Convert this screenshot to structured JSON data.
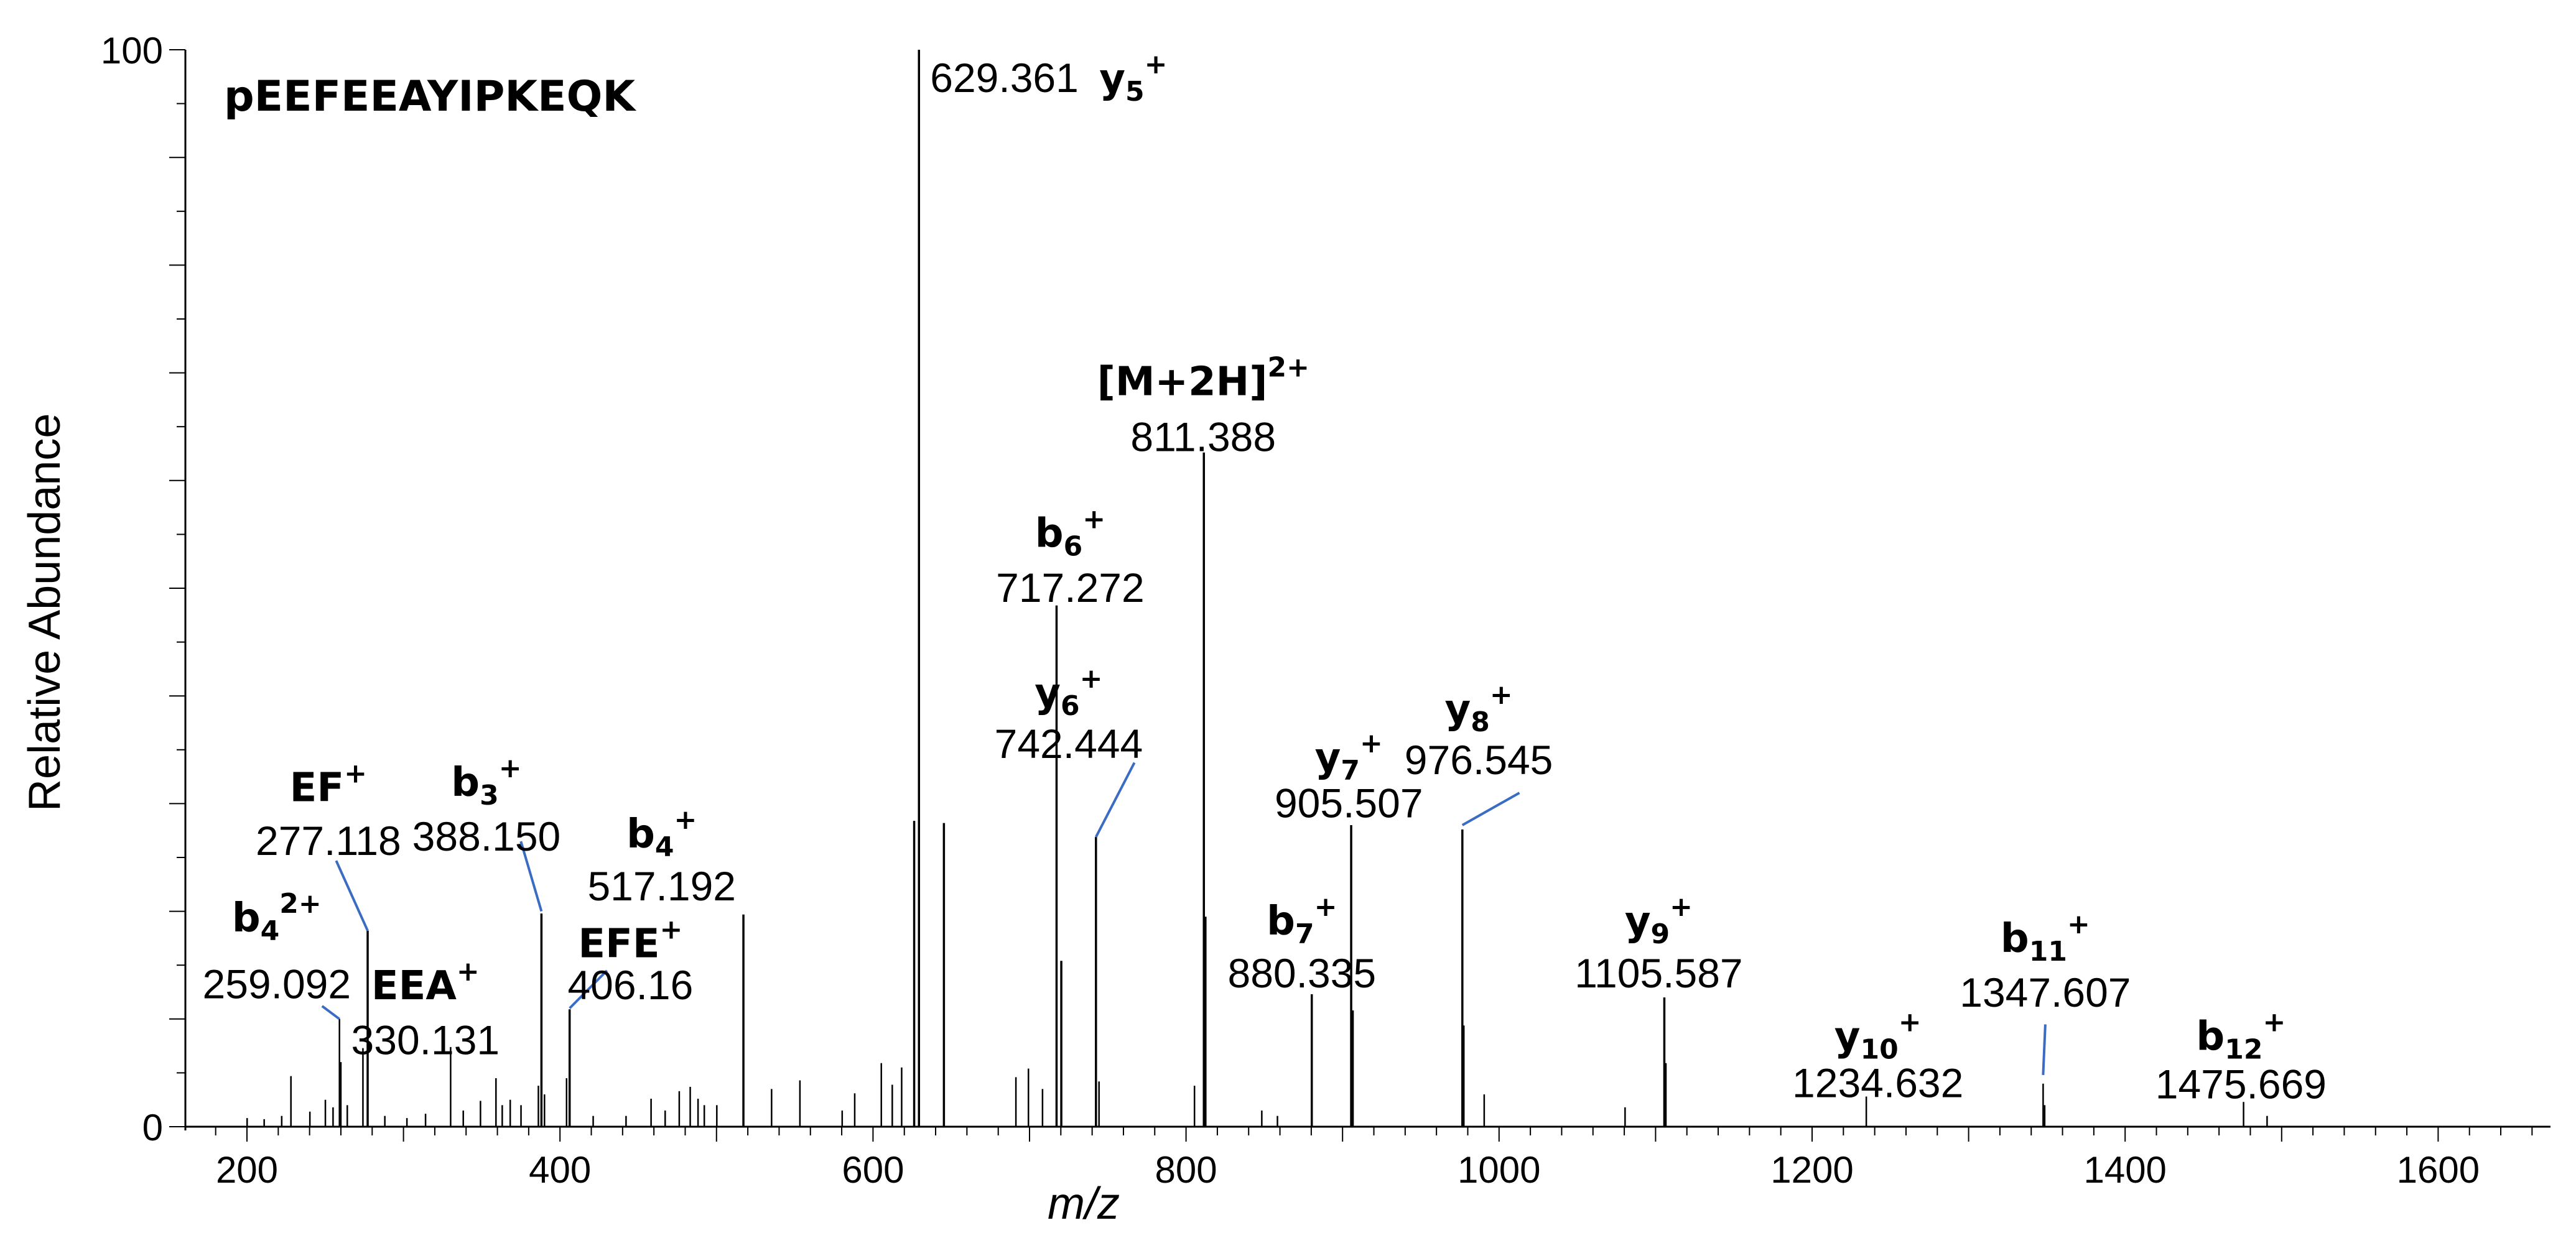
{
  "chart_data": {
    "type": "bar",
    "title": "pEEFEEAYIPKEQK",
    "xlabel": "m/z",
    "ylabel": "Relative Abundance",
    "xlim": [
      160,
      1680
    ],
    "ylim": [
      0,
      100
    ],
    "x_ticks": [
      200,
      400,
      600,
      800,
      1000,
      1200,
      1400,
      1600
    ],
    "y_ticks": [
      {
        "value": 0,
        "label": "0"
      },
      {
        "value": 100,
        "label": "100"
      }
    ],
    "colors": {
      "peak": "#000000",
      "leader": "#3a6cc4",
      "axis": "#000000"
    },
    "peaks": [
      {
        "mz": 200.1,
        "intensity": 0.8
      },
      {
        "mz": 211.0,
        "intensity": 0.7
      },
      {
        "mz": 222.2,
        "intensity": 1.0
      },
      {
        "mz": 228.1,
        "intensity": 4.7
      },
      {
        "mz": 240.2,
        "intensity": 1.4
      },
      {
        "mz": 250.1,
        "intensity": 2.5
      },
      {
        "mz": 255.0,
        "intensity": 1.8
      },
      {
        "mz": 259.092,
        "intensity": 10.0
      },
      {
        "mz": 260.0,
        "intensity": 6.0
      },
      {
        "mz": 264.1,
        "intensity": 2.0
      },
      {
        "mz": 274.1,
        "intensity": 7.3
      },
      {
        "mz": 277.118,
        "intensity": 18.2
      },
      {
        "mz": 288.1,
        "intensity": 1.0
      },
      {
        "mz": 302.2,
        "intensity": 0.8
      },
      {
        "mz": 314.1,
        "intensity": 1.2
      },
      {
        "mz": 330.131,
        "intensity": 7.4
      },
      {
        "mz": 338.2,
        "intensity": 1.5
      },
      {
        "mz": 349.2,
        "intensity": 2.4
      },
      {
        "mz": 359.1,
        "intensity": 4.5
      },
      {
        "mz": 363.1,
        "intensity": 2.0
      },
      {
        "mz": 368.2,
        "intensity": 2.5
      },
      {
        "mz": 375.1,
        "intensity": 2.0
      },
      {
        "mz": 386.2,
        "intensity": 3.8
      },
      {
        "mz": 388.15,
        "intensity": 19.8
      },
      {
        "mz": 390.1,
        "intensity": 3.0
      },
      {
        "mz": 404.2,
        "intensity": 4.5
      },
      {
        "mz": 406.16,
        "intensity": 10.9
      },
      {
        "mz": 421.2,
        "intensity": 1.0
      },
      {
        "mz": 442.2,
        "intensity": 1.0
      },
      {
        "mz": 458.2,
        "intensity": 2.6
      },
      {
        "mz": 467.2,
        "intensity": 1.5
      },
      {
        "mz": 476.2,
        "intensity": 3.3
      },
      {
        "mz": 483.2,
        "intensity": 3.7
      },
      {
        "mz": 488.2,
        "intensity": 2.6
      },
      {
        "mz": 492.2,
        "intensity": 2.0
      },
      {
        "mz": 500.2,
        "intensity": 2.0
      },
      {
        "mz": 517.192,
        "intensity": 19.7
      },
      {
        "mz": 535.2,
        "intensity": 3.5
      },
      {
        "mz": 553.3,
        "intensity": 4.3
      },
      {
        "mz": 580.3,
        "intensity": 1.5
      },
      {
        "mz": 588.3,
        "intensity": 3.1
      },
      {
        "mz": 605.3,
        "intensity": 5.9
      },
      {
        "mz": 612.3,
        "intensity": 3.9
      },
      {
        "mz": 618.3,
        "intensity": 5.5
      },
      {
        "mz": 626.3,
        "intensity": 28.4
      },
      {
        "mz": 629.361,
        "intensity": 100.0
      },
      {
        "mz": 645.3,
        "intensity": 28.2
      },
      {
        "mz": 691.3,
        "intensity": 4.6
      },
      {
        "mz": 699.3,
        "intensity": 5.4
      },
      {
        "mz": 708.3,
        "intensity": 3.5
      },
      {
        "mz": 717.272,
        "intensity": 48.4
      },
      {
        "mz": 720.3,
        "intensity": 15.4
      },
      {
        "mz": 742.444,
        "intensity": 26.9
      },
      {
        "mz": 744.4,
        "intensity": 4.2
      },
      {
        "mz": 805.4,
        "intensity": 3.8
      },
      {
        "mz": 811.388,
        "intensity": 62.6
      },
      {
        "mz": 812.4,
        "intensity": 19.5
      },
      {
        "mz": 848.4,
        "intensity": 1.5
      },
      {
        "mz": 858.4,
        "intensity": 1.0
      },
      {
        "mz": 880.335,
        "intensity": 12.3
      },
      {
        "mz": 905.507,
        "intensity": 28.0
      },
      {
        "mz": 906.5,
        "intensity": 10.8
      },
      {
        "mz": 976.545,
        "intensity": 27.6
      },
      {
        "mz": 977.5,
        "intensity": 9.4
      },
      {
        "mz": 990.5,
        "intensity": 3.0
      },
      {
        "mz": 1080.5,
        "intensity": 1.8
      },
      {
        "mz": 1105.587,
        "intensity": 12.0
      },
      {
        "mz": 1106.6,
        "intensity": 5.9
      },
      {
        "mz": 1234.632,
        "intensity": 2.8
      },
      {
        "mz": 1347.607,
        "intensity": 4.0
      },
      {
        "mz": 1348.6,
        "intensity": 2.0
      },
      {
        "mz": 1475.669,
        "intensity": 2.3
      },
      {
        "mz": 1490.7,
        "intensity": 1.0
      }
    ],
    "annotations": [
      {
        "ion": "b",
        "sub": "4",
        "sup": "2+",
        "mz_label": "259.092",
        "peak_mz": 259.092,
        "peak_intensity": 10.0,
        "label_mz": 219,
        "ion_y": 19.4,
        "val_y": 13.2,
        "leader": [
          248,
          11.2,
          259.092,
          10.0
        ]
      },
      {
        "ion": "EF",
        "sub": "",
        "sup": "+",
        "mz_label": "277.118",
        "peak_mz": 277.118,
        "peak_intensity": 18.2,
        "label_mz": 252,
        "ion_y": 31.5,
        "val_y": 26.5,
        "leader": [
          257,
          24.7,
          277.118,
          18.2
        ]
      },
      {
        "ion": "EEA",
        "sub": "",
        "sup": "+",
        "mz_label": "330.131",
        "peak_mz": 330.131,
        "peak_intensity": 7.4,
        "label_mz": 314,
        "ion_y": 13.1,
        "val_y": 8.0,
        "leader": null
      },
      {
        "ion": "b",
        "sub": "3",
        "sup": "+",
        "mz_label": "388.150",
        "peak_mz": 388.15,
        "peak_intensity": 19.8,
        "label_mz": 353,
        "ion_y": 32.0,
        "val_y": 26.9,
        "leader": [
          375,
          26.5,
          388.15,
          20.0
        ]
      },
      {
        "ion": "EFE",
        "sub": "",
        "sup": "+",
        "mz_label": "406.16",
        "peak_mz": 406.16,
        "peak_intensity": 10.9,
        "label_mz": 445,
        "ion_y": 17.0,
        "val_y": 13.1,
        "leader": [
          430,
          14.5,
          406.16,
          11.0
        ]
      },
      {
        "ion": "b",
        "sub": "4",
        "sup": "+",
        "mz_label": "517.192",
        "peak_mz": 517.192,
        "peak_intensity": 19.7,
        "label_mz": 465,
        "ion_y": 27.2,
        "val_y": 22.3,
        "leader": null
      },
      {
        "ion": "y",
        "sub": "5",
        "sup": "+",
        "mz_label": "629.361",
        "peak_mz": 629.361,
        "peak_intensity": 100.0,
        "label_mz": null,
        "ion_y": 97.8,
        "val_y": 97.8,
        "leader": null
      },
      {
        "ion": "[M+2H]",
        "sub": "",
        "sup": "2+",
        "mz_label": "811.388",
        "peak_mz": 811.388,
        "peak_intensity": 62.6,
        "label_mz": 811,
        "ion_y": 69.2,
        "val_y": 64.0,
        "leader": null
      },
      {
        "ion": "b",
        "sub": "6",
        "sup": "+",
        "mz_label": "717.272",
        "peak_mz": 717.272,
        "peak_intensity": 48.4,
        "label_mz": 726,
        "ion_y": 55.1,
        "val_y": 50.0,
        "leader": null
      },
      {
        "ion": "y",
        "sub": "6",
        "sup": "+",
        "mz_label": "742.444",
        "peak_mz": 742.444,
        "peak_intensity": 26.9,
        "label_mz": 725,
        "ion_y": 40.3,
        "val_y": 35.5,
        "leader": [
          767,
          33.8,
          742.444,
          26.9
        ]
      },
      {
        "ion": "y",
        "sub": "7",
        "sup": "+",
        "mz_label": "905.507",
        "peak_mz": 905.507,
        "peak_intensity": 28.0,
        "label_mz": 904,
        "ion_y": 34.3,
        "val_y": 30.0,
        "leader": null
      },
      {
        "ion": "y",
        "sub": "8",
        "sup": "+",
        "mz_label": "976.545",
        "peak_mz": 976.545,
        "peak_intensity": 27.6,
        "label_mz": 987,
        "ion_y": 38.8,
        "val_y": 34.0,
        "leader": [
          1013,
          31.0,
          976.545,
          28.0
        ]
      },
      {
        "ion": "b",
        "sub": "7",
        "sup": "+",
        "mz_label": "880.335",
        "peak_mz": 880.335,
        "peak_intensity": 12.3,
        "label_mz": 874,
        "ion_y": 19.1,
        "val_y": 14.2,
        "leader": null
      },
      {
        "ion": "y",
        "sub": "9",
        "sup": "+",
        "mz_label": "1105.587",
        "peak_mz": 1105.587,
        "peak_intensity": 12.0,
        "label_mz": 1102,
        "ion_y": 19.1,
        "val_y": 14.2,
        "leader": null
      },
      {
        "ion": "y",
        "sub": "10",
        "sup": "+",
        "mz_label": "1234.632",
        "peak_mz": 1234.632,
        "peak_intensity": 2.8,
        "label_mz": 1242,
        "ion_y": 8.4,
        "val_y": 4.0,
        "leader": null
      },
      {
        "ion": "b",
        "sub": "11",
        "sup": "+",
        "mz_label": "1347.607",
        "peak_mz": 1347.607,
        "peak_intensity": 4.0,
        "label_mz": 1349,
        "ion_y": 17.5,
        "val_y": 12.4,
        "leader": [
          1349,
          9.5,
          1347.607,
          4.8
        ]
      },
      {
        "ion": "b",
        "sub": "12",
        "sup": "+",
        "mz_label": "1475.669",
        "peak_mz": 1475.669,
        "peak_intensity": 2.3,
        "label_mz": 1474,
        "ion_y": 8.4,
        "val_y": 3.9,
        "leader": null
      }
    ]
  }
}
